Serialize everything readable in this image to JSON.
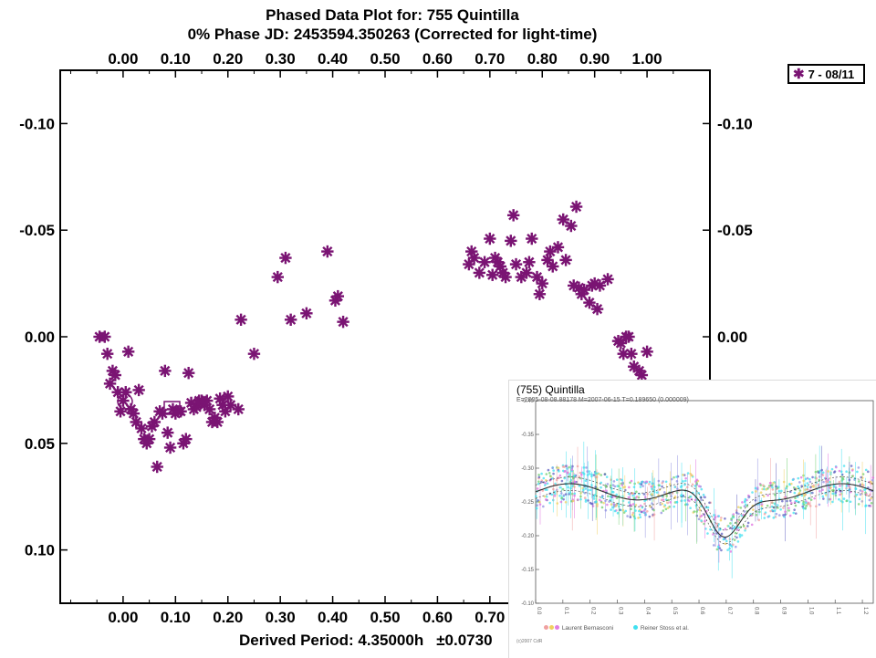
{
  "title_line1": "Phased Data Plot for: 755 Quintilla",
  "title_line2": "0% Phase JD:  2453594.350263   (Corrected for light-time)",
  "footer": {
    "period": "Derived Period: 4.35000h",
    "uncertainty": "±0.0730"
  },
  "colors": {
    "marker": "#7a1473",
    "axis": "#000000",
    "inset_curve": "#333333"
  },
  "chart_data": {
    "type": "scatter",
    "title": "Phased Data Plot for: 755 Quintilla",
    "subtitle": "0% Phase JD:  2453594.350263   (Corrected for light-time)",
    "xlabel": "",
    "ylabel": "",
    "xlim": [
      -0.12,
      1.12
    ],
    "ylim": [
      -0.125,
      0.125
    ],
    "y_inverted": true,
    "grid": false,
    "legend_position": "top-right",
    "x_ticks": [
      "0.00",
      "0.10",
      "0.20",
      "0.30",
      "0.40",
      "0.50",
      "0.60",
      "0.70",
      "0.80",
      "0.90",
      "1.00"
    ],
    "x_tick_values": [
      0,
      0.1,
      0.2,
      0.3,
      0.4,
      0.5,
      0.6,
      0.7,
      0.8,
      0.9,
      1.0
    ],
    "y_ticks": [
      "-0.10",
      "-0.05",
      "0.00",
      "0.05",
      "0.10"
    ],
    "y_tick_values": [
      -0.1,
      -0.05,
      0,
      0.05,
      0.1
    ],
    "series": [
      {
        "name": "7 - 08/11",
        "marker": "asterisk",
        "x": [
          -0.045,
          -0.035,
          -0.03,
          -0.025,
          -0.02,
          -0.015,
          -0.01,
          -0.005,
          0.0,
          0.005,
          0.01,
          0.015,
          0.02,
          0.025,
          0.03,
          0.035,
          0.04,
          0.045,
          0.05,
          0.055,
          0.06,
          0.065,
          0.07,
          0.075,
          0.08,
          0.085,
          0.09,
          0.095,
          0.1,
          0.105,
          0.11,
          0.115,
          0.12,
          0.125,
          0.13,
          0.135,
          0.14,
          0.145,
          0.15,
          0.155,
          0.16,
          0.165,
          0.17,
          0.175,
          0.18,
          0.185,
          0.19,
          0.195,
          0.2,
          0.205,
          0.22,
          0.225,
          0.25,
          0.295,
          0.31,
          0.32,
          0.35,
          0.39,
          0.405,
          0.41,
          0.42,
          0.66,
          0.665,
          0.67,
          0.68,
          0.69,
          0.7,
          0.705,
          0.71,
          0.715,
          0.72,
          0.725,
          0.73,
          0.74,
          0.745,
          0.75,
          0.76,
          0.77,
          0.775,
          0.78,
          0.79,
          0.795,
          0.8,
          0.81,
          0.815,
          0.82,
          0.83,
          0.84,
          0.845,
          0.855,
          0.86,
          0.865,
          0.87,
          0.875,
          0.88,
          0.89,
          0.895,
          0.9,
          0.905,
          0.91,
          0.925,
          0.945,
          0.95,
          0.955,
          0.96,
          0.965,
          0.97,
          0.975,
          0.985,
          0.99,
          1.0
        ],
        "y": [
          0.0,
          0.0,
          0.008,
          0.022,
          0.016,
          0.018,
          0.026,
          0.035,
          0.03,
          0.026,
          0.007,
          0.034,
          0.036,
          0.04,
          0.025,
          0.043,
          0.048,
          0.05,
          0.048,
          0.042,
          0.04,
          0.061,
          0.035,
          0.036,
          0.016,
          0.045,
          0.052,
          0.034,
          0.036,
          0.035,
          0.035,
          0.05,
          0.048,
          0.017,
          0.031,
          0.034,
          0.033,
          0.03,
          0.03,
          0.032,
          0.03,
          0.034,
          0.04,
          0.038,
          0.04,
          0.029,
          0.032,
          0.035,
          0.028,
          0.032,
          0.034,
          -0.008,
          0.008,
          -0.028,
          -0.037,
          -0.008,
          -0.011,
          -0.04,
          -0.017,
          -0.019,
          -0.007,
          -0.034,
          -0.04,
          -0.037,
          -0.03,
          -0.035,
          -0.046,
          -0.029,
          -0.037,
          -0.035,
          -0.033,
          -0.03,
          -0.028,
          -0.045,
          -0.057,
          -0.034,
          -0.028,
          -0.03,
          -0.035,
          -0.046,
          -0.028,
          -0.02,
          -0.025,
          -0.036,
          -0.04,
          -0.033,
          -0.042,
          -0.055,
          -0.036,
          -0.052,
          -0.024,
          -0.061,
          -0.023,
          -0.02,
          -0.022,
          -0.016,
          -0.024,
          -0.025,
          -0.013,
          -0.024,
          -0.027,
          0.002,
          0.003,
          0.008,
          0.0,
          0.0,
          0.008,
          0.014,
          0.016,
          0.018,
          0.007
        ]
      }
    ]
  },
  "inset": {
    "title": "(755) Quintilla",
    "subtitle": "E=2005-08-08.88178    M=2007-06-15    T=0.189650 (0.000009)",
    "y_ticks": [
      "-0.40",
      "-0.35",
      "-0.30",
      "-0.25",
      "-0.20",
      "-0.15",
      "-0.10"
    ],
    "y_tick_values": [
      -0.4,
      -0.35,
      -0.3,
      -0.25,
      -0.2,
      -0.15,
      -0.1
    ],
    "x_ticks": [
      "0.0",
      "0.1",
      "0.2",
      "0.3",
      "0.4",
      "0.5",
      "0.6",
      "0.7",
      "0.8",
      "0.9",
      "1.0",
      "1.1",
      "1.2"
    ],
    "x_tick_values": [
      0,
      0.1,
      0.2,
      0.3,
      0.4,
      0.5,
      0.6,
      0.7,
      0.8,
      0.9,
      1.0,
      1.1,
      1.2
    ],
    "legend": [
      "Laurent Bernasconi",
      "Reiner Stoss et al."
    ],
    "credit": "(c)2007 CdR"
  }
}
